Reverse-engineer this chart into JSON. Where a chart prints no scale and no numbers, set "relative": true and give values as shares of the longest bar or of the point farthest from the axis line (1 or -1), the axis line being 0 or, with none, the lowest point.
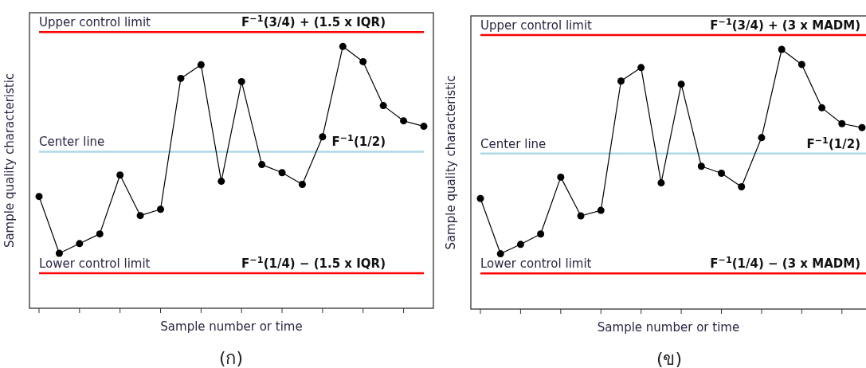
{
  "chart_data": [
    {
      "type": "line",
      "title": "(ก)",
      "xlabel": "Sample number or time",
      "ylabel": "Sample quality characteristic",
      "relative": true,
      "marker": "circle",
      "line_style": "solid",
      "categories": [
        null,
        null,
        null,
        null,
        null,
        null,
        null,
        null,
        null,
        null,
        null,
        null,
        null,
        null,
        null,
        null,
        null,
        null,
        null,
        null
      ],
      "series": [
        {
          "color": "#000000",
          "values": [
            0.427,
            0.21,
            0.247,
            0.284,
            0.509,
            0.354,
            0.378,
            0.878,
            0.93,
            0.485,
            0.866,
            0.549,
            0.518,
            0.473,
            0.655,
            1,
            0.942,
            0.774,
            0.716,
            0.695
          ]
        }
      ],
      "ref_lines": [
        {
          "axis": "y",
          "value": 1.055,
          "label": "Upper control limit",
          "color": "#ff0000"
        },
        {
          "axis": "y",
          "value": 0.598,
          "label": "Center line",
          "color": "#add8e6"
        },
        {
          "axis": "y",
          "value": 0.134,
          "label": "Lower control limit",
          "color": "#ff0000"
        }
      ],
      "annotations": [
        {
          "text": "F$^{−1}$(3/4) + (1.5 x IQR)",
          "y": 1.055
        },
        {
          "text": "F$^{−1}$(1/2)",
          "y": 0.598
        },
        {
          "text": "F$^{−1}$(1/4) − (1.5 x IQR)",
          "y": 0.134
        }
      ]
    },
    {
      "type": "line",
      "title": "(ข)",
      "xlabel": "Sample number or time",
      "ylabel": "Sample quality characteristic",
      "relative": true,
      "marker": "circle",
      "line_style": "solid",
      "categories": [
        null,
        null,
        null,
        null,
        null,
        null,
        null,
        null,
        null,
        null,
        null,
        null,
        null,
        null,
        null,
        null,
        null,
        null,
        null,
        null
      ],
      "series": [
        {
          "color": "#000000",
          "values": [
            0.426,
            0.213,
            0.249,
            0.289,
            0.508,
            0.359,
            0.38,
            0.878,
            0.93,
            0.486,
            0.866,
            0.55,
            0.523,
            0.471,
            0.66,
            1,
            0.942,
            0.775,
            0.714,
            0.699
          ]
        }
      ],
      "ref_lines": [
        {
          "axis": "y",
          "value": 1.055,
          "label": "Upper control limit",
          "color": "#ff0000"
        },
        {
          "axis": "y",
          "value": 0.599,
          "label": "Center line",
          "color": "#add8e6"
        },
        {
          "axis": "y",
          "value": 0.137,
          "label": "Lower control limit",
          "color": "#ff0000"
        }
      ],
      "annotations": [
        {
          "text": "F$^{−1}$(3/4) + (3 x MADM)",
          "y": 1.055
        },
        {
          "text": "F$^{−1}$(1/2)",
          "y": 0.599
        },
        {
          "text": "F$^{−1}$(1/4) − (3 x MADM)",
          "y": 0.137
        }
      ]
    }
  ]
}
